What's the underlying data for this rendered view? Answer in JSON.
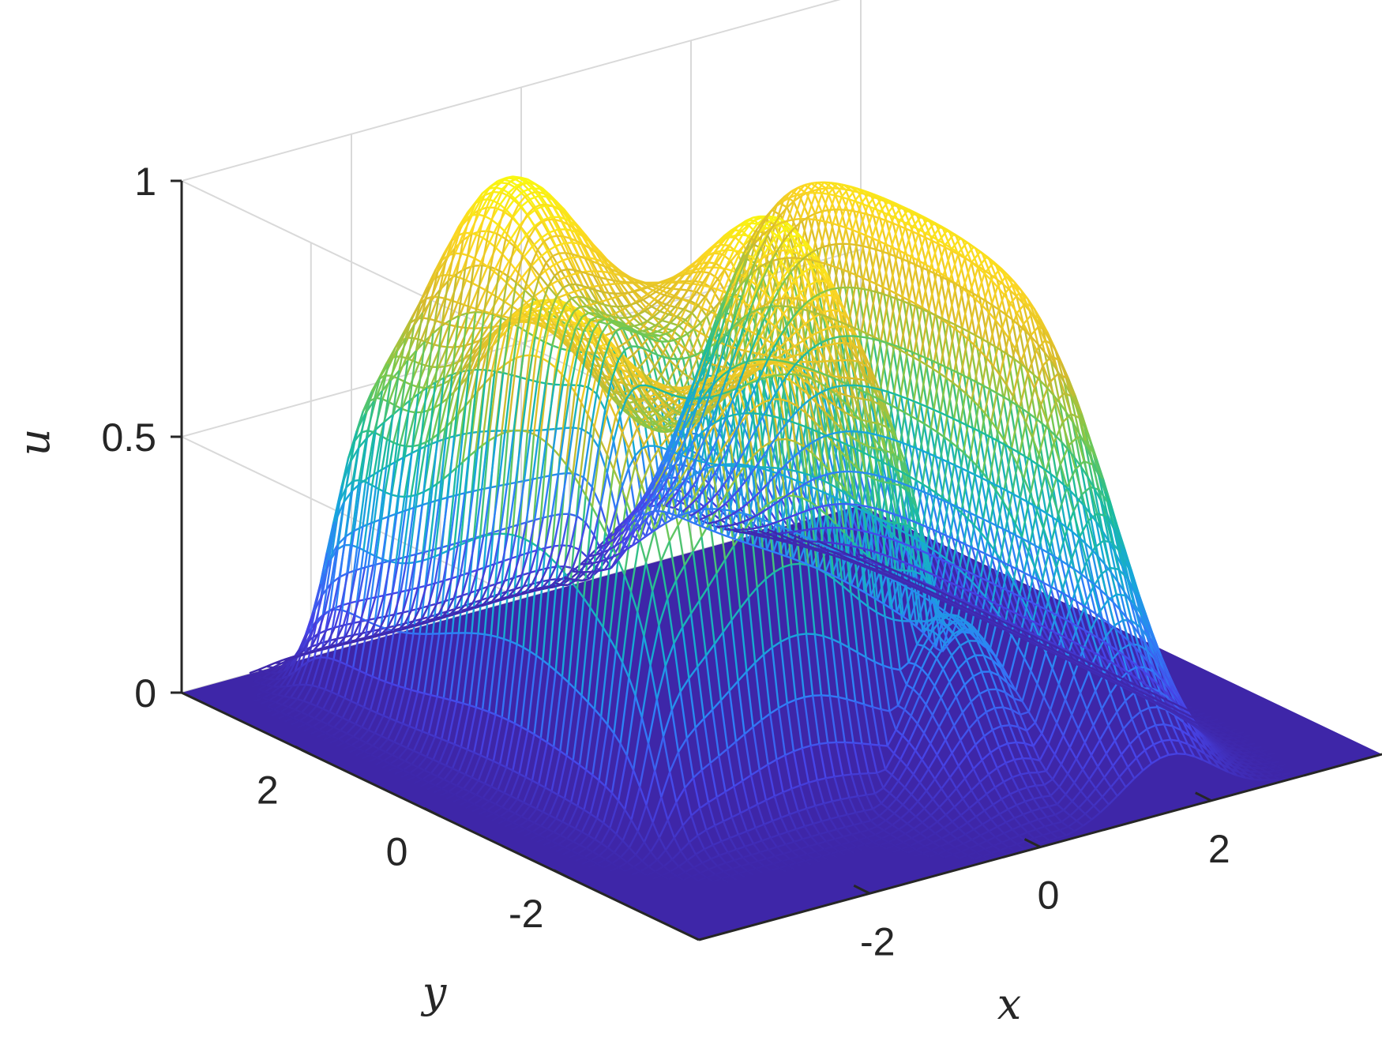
{
  "chart_data": {
    "type": "surface",
    "title": "",
    "xlabel": "x",
    "ylabel": "y",
    "zlabel": "u",
    "xlim": [
      -4,
      4
    ],
    "ylim": [
      -4,
      4
    ],
    "zlim": [
      0,
      1
    ],
    "x_ticks": [
      {
        "value": -2,
        "label": "-2"
      },
      {
        "value": 0,
        "label": "0"
      },
      {
        "value": 2,
        "label": "2"
      }
    ],
    "y_ticks": [
      {
        "value": -2,
        "label": "-2"
      },
      {
        "value": 0,
        "label": "0"
      },
      {
        "value": 2,
        "label": "2"
      }
    ],
    "z_ticks": [
      {
        "value": 0,
        "label": "0"
      },
      {
        "value": 0.5,
        "label": "0.5"
      },
      {
        "value": 1,
        "label": "1"
      }
    ],
    "grid": true,
    "colormap": "parula",
    "colormap_stops": [
      "#3e26a8",
      "#4744e8",
      "#2f80f8",
      "#16a8d9",
      "#1dbd9a",
      "#7ac94d",
      "#d7ba2c",
      "#fbd523",
      "#f9fb0e"
    ],
    "surface_features": [
      {
        "shape": "plateau",
        "x_range": [
          -3,
          0.5
        ],
        "y_range": [
          -2,
          3.2
        ],
        "peak_u": 1.0
      },
      {
        "shape": "ridge",
        "x_range": [
          0.5,
          2.5
        ],
        "y_range": [
          -3,
          3
        ],
        "peak_u": 0.94
      },
      {
        "shape": "peak",
        "x_center": 0.3,
        "y_center": -2.2,
        "peak_u": 0.33
      }
    ]
  }
}
